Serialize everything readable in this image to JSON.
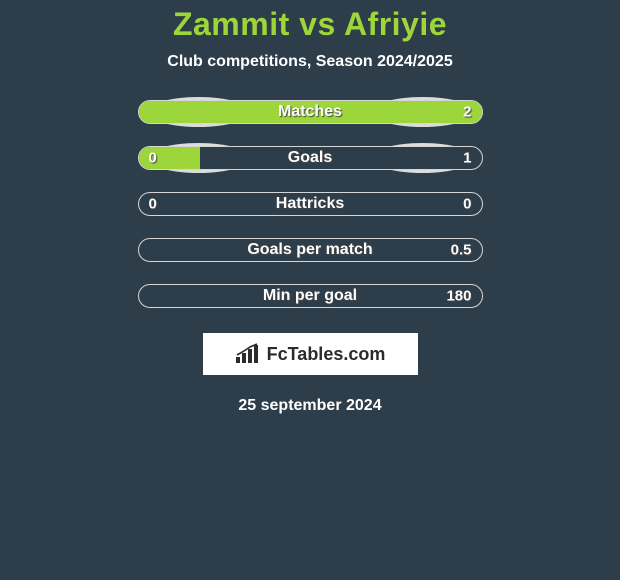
{
  "title": "Zammit vs Afriyie",
  "subtitle": "Club competitions, Season 2024/2025",
  "colors": {
    "background": "#2d3d49",
    "accent": "#9dd63a",
    "track_border": "#d6d6d6",
    "ellipse": "#dcdcdc",
    "text": "#ffffff",
    "logo_bg": "#ffffff",
    "logo_text": "#2b2b2b"
  },
  "rows": [
    {
      "label": "Matches",
      "left_value": "",
      "right_value": "2",
      "left_fill_pct": 100,
      "right_fill_pct": 100,
      "show_left_ellipse": true,
      "show_right_ellipse": true
    },
    {
      "label": "Goals",
      "left_value": "0",
      "right_value": "1",
      "left_fill_pct": 18,
      "right_fill_pct": 0,
      "show_left_ellipse": true,
      "show_right_ellipse": true
    },
    {
      "label": "Hattricks",
      "left_value": "0",
      "right_value": "0",
      "left_fill_pct": 0,
      "right_fill_pct": 0,
      "show_left_ellipse": false,
      "show_right_ellipse": false
    },
    {
      "label": "Goals per match",
      "left_value": "",
      "right_value": "0.5",
      "left_fill_pct": 0,
      "right_fill_pct": 0,
      "show_left_ellipse": false,
      "show_right_ellipse": false
    },
    {
      "label": "Min per goal",
      "left_value": "",
      "right_value": "180",
      "left_fill_pct": 0,
      "right_fill_pct": 0,
      "show_left_ellipse": false,
      "show_right_ellipse": false
    }
  ],
  "logo_text": "FcTables.com",
  "date": "25 september 2024",
  "bar_track_width": 345,
  "bar_track_height": 24
}
